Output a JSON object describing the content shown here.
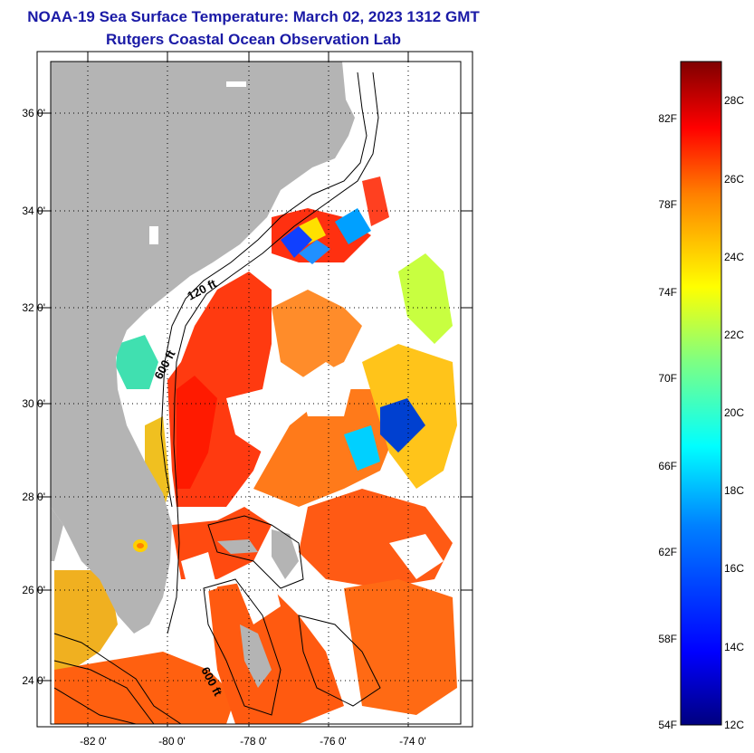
{
  "title": "NOAA-19 Sea Surface Temperature:  March 02, 2023 1312 GMT",
  "subtitle": "Rutgers Coastal Ocean Observation Lab",
  "map": {
    "lat_ticks": [
      "36 0'",
      "34 0'",
      "32 0'",
      "30 0'",
      "28 0'",
      "26 0'",
      "24 0'"
    ],
    "lon_ticks": [
      "-82 0'",
      "-80 0'",
      "-78 0'",
      "-76 0'",
      "-74 0'"
    ],
    "isobath_labels": [
      "120 ft",
      "600 ft",
      "600 ft"
    ],
    "colors": {
      "land": "#b4b4b4",
      "cloud": "#ffffff",
      "contour": "#000000"
    }
  },
  "colorbar": {
    "fahrenheit_labels": [
      "82F",
      "78F",
      "74F",
      "70F",
      "66F",
      "62F",
      "58F",
      "54F"
    ],
    "celsius_labels": [
      "28C",
      "26C",
      "24C",
      "22C",
      "20C",
      "18C",
      "16C",
      "14C",
      "12C"
    ],
    "range_c": [
      12,
      29
    ],
    "colormap": [
      "#00007f",
      "#0000ff",
      "#0080ff",
      "#00ffff",
      "#80ff80",
      "#ffff00",
      "#ff8000",
      "#ff0000",
      "#7f0000"
    ]
  }
}
